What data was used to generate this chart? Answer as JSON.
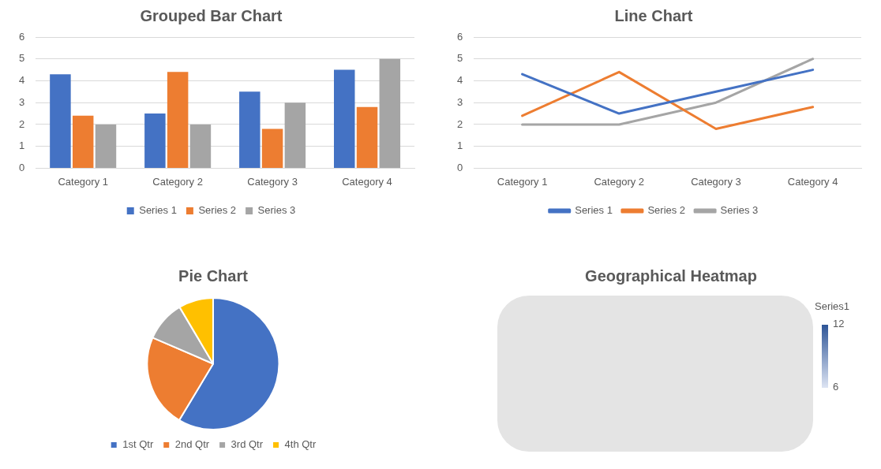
{
  "chart_data": [
    {
      "type": "bar",
      "title": "Grouped Bar Chart",
      "categories": [
        "Category 1",
        "Category 2",
        "Category 3",
        "Category 4"
      ],
      "series": [
        {
          "name": "Series 1",
          "color": "#4472c4",
          "values": [
            4.3,
            2.5,
            3.5,
            4.5
          ]
        },
        {
          "name": "Series 2",
          "color": "#ed7d31",
          "values": [
            2.4,
            4.4,
            1.8,
            2.8
          ]
        },
        {
          "name": "Series 3",
          "color": "#a5a5a5",
          "values": [
            2,
            2,
            3,
            5
          ]
        }
      ],
      "ylim": [
        0,
        6
      ],
      "yticks": [
        0,
        1,
        2,
        3,
        4,
        5,
        6
      ],
      "grid": "y",
      "legend": "bottom"
    },
    {
      "type": "line",
      "title": "Line Chart",
      "categories": [
        "Category 1",
        "Category 2",
        "Category 3",
        "Category 4"
      ],
      "series": [
        {
          "name": "Series 1",
          "color": "#4472c4",
          "values": [
            4.3,
            2.5,
            3.5,
            4.5
          ]
        },
        {
          "name": "Series 2",
          "color": "#ed7d31",
          "values": [
            2.4,
            4.4,
            1.8,
            2.8
          ]
        },
        {
          "name": "Series 3",
          "color": "#a5a5a5",
          "values": [
            2,
            2,
            3,
            5
          ]
        }
      ],
      "ylim": [
        0,
        6
      ],
      "yticks": [
        0,
        1,
        2,
        3,
        4,
        5,
        6
      ],
      "grid": "y",
      "legend": "bottom",
      "marker": "none"
    },
    {
      "type": "pie",
      "title": "Pie Chart",
      "categories": [
        "1st Qtr",
        "2nd Qtr",
        "3rd Qtr",
        "4th Qtr"
      ],
      "values": [
        58.6,
        22.9,
        10.0,
        8.5
      ],
      "colors": [
        "#4472c4",
        "#ed7d31",
        "#a5a5a5",
        "#ffc000"
      ],
      "legend": "bottom"
    },
    {
      "type": "other",
      "title": "Geographical Heatmap",
      "clabel": "Series1",
      "annotations": [
        "12",
        "6"
      ]
    }
  ]
}
